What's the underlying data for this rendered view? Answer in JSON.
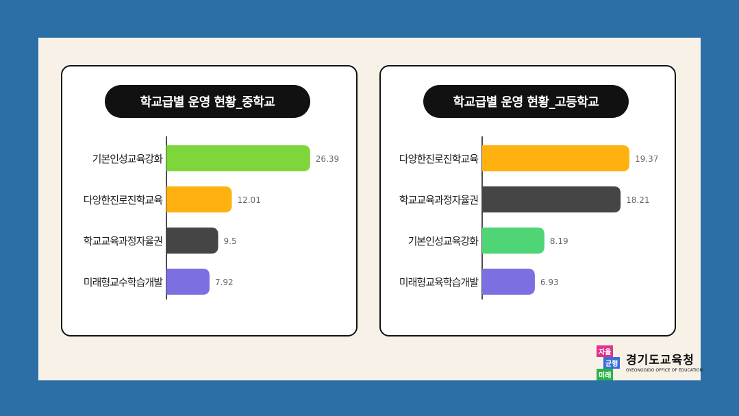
{
  "chart_data": [
    {
      "type": "bar",
      "orientation": "horizontal",
      "title": "학교급별 운영 현황_중학교",
      "categories": [
        "기본인성교육강화",
        "다양한진로진학교육",
        "학교교육과정자율권",
        "미래형교수학습개발"
      ],
      "values": [
        26.39,
        12.01,
        9.5,
        7.92
      ],
      "value_labels": [
        "26.39",
        "12.01",
        "9.5",
        "7.92"
      ],
      "colors": [
        "#7ed63b",
        "#ffb20f",
        "#454545",
        "#7b6fe2"
      ]
    },
    {
      "type": "bar",
      "orientation": "horizontal",
      "title": "학교급별 운영 현황_고등학교",
      "categories": [
        "다양한진로진학교육",
        "학교교육과정자율권",
        "기본인성교육강화",
        "미래형교육학습개발"
      ],
      "values": [
        19.37,
        18.21,
        8.19,
        6.93
      ],
      "value_labels": [
        "19.37",
        "18.21",
        "8.19",
        "6.93"
      ],
      "colors": [
        "#ffb20f",
        "#454545",
        "#4fd576",
        "#7b6fe2"
      ]
    }
  ],
  "logo": {
    "tags": [
      "자율",
      "균형",
      "미래"
    ],
    "name": "경기도교육청",
    "subtitle": "GYEONGGIDO OFFICE OF EDUCATION",
    "tag_colors": [
      "#e0338a",
      "#3a6fd8",
      "#2bb34a"
    ]
  }
}
